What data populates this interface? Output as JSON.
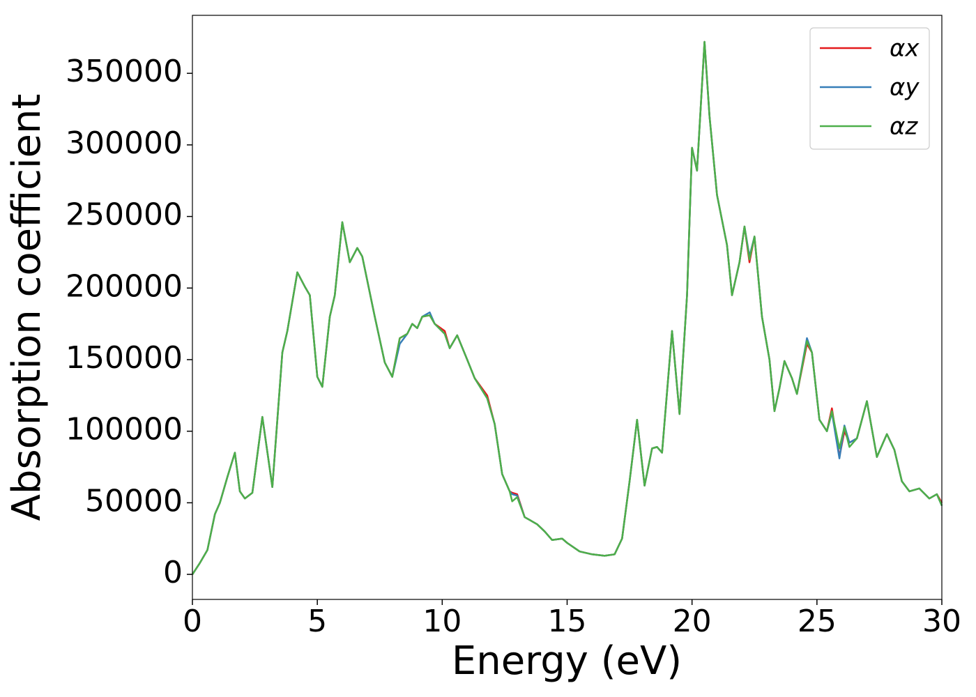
{
  "chart_data": {
    "type": "line",
    "xlabel": "Energy (eV)",
    "ylabel": "Absorption coefficient",
    "x": [
      0,
      0.3,
      0.6,
      0.9,
      1.1,
      1.4,
      1.7,
      1.9,
      2.1,
      2.4,
      2.8,
      3.2,
      3.6,
      3.8,
      4.2,
      4.5,
      4.7,
      5.0,
      5.2,
      5.5,
      5.7,
      6.0,
      6.3,
      6.6,
      6.8,
      7.3,
      7.7,
      8.0,
      8.3,
      8.6,
      8.8,
      9.0,
      9.2,
      9.5,
      9.7,
      10.1,
      10.3,
      10.6,
      11.0,
      11.3,
      11.8,
      12.1,
      12.4,
      12.7,
      12.8,
      13.0,
      13.3,
      13.8,
      14.1,
      14.4,
      14.8,
      15.0,
      15.5,
      16.0,
      16.5,
      16.9,
      17.2,
      17.5,
      17.8,
      18.1,
      18.4,
      18.6,
      18.8,
      19.2,
      19.5,
      19.8,
      20.0,
      20.2,
      20.5,
      20.7,
      21.0,
      21.4,
      21.6,
      21.9,
      22.1,
      22.3,
      22.5,
      22.8,
      23.1,
      23.3,
      23.5,
      23.7,
      24.0,
      24.2,
      24.6,
      24.8,
      25.1,
      25.4,
      25.6,
      25.9,
      26.1,
      26.3,
      26.6,
      27.0,
      27.4,
      27.8,
      28.1,
      28.4,
      28.7,
      29.1,
      29.5,
      29.8,
      30
    ],
    "series": [
      {
        "name": "αx",
        "color": "#e41a1c",
        "values": [
          0,
          8000,
          17000,
          42000,
          50000,
          68000,
          85000,
          58000,
          53000,
          57000,
          110000,
          61000,
          155000,
          170000,
          211000,
          201000,
          195000,
          138000,
          131000,
          180000,
          195000,
          246000,
          218000,
          228000,
          222000,
          180000,
          148000,
          138000,
          165000,
          168000,
          175000,
          172000,
          180000,
          181000,
          175000,
          170000,
          158000,
          167000,
          150000,
          137000,
          125000,
          105000,
          70000,
          58000,
          57000,
          56000,
          40000,
          35000,
          30000,
          24000,
          25000,
          22000,
          16000,
          14000,
          13000,
          14000,
          25000,
          65000,
          108000,
          62000,
          88000,
          89000,
          85000,
          170000,
          112000,
          195000,
          298000,
          282000,
          372000,
          320000,
          265000,
          230000,
          195000,
          218000,
          243000,
          218000,
          236000,
          180000,
          150000,
          114000,
          130000,
          149000,
          137000,
          126000,
          161000,
          155000,
          108000,
          100000,
          116000,
          82000,
          100000,
          92000,
          95000,
          121000,
          82000,
          98000,
          87000,
          65000,
          58000,
          60000,
          53000,
          56000,
          50000
        ]
      },
      {
        "name": "αy",
        "color": "#377eb8",
        "values": [
          0,
          8000,
          17000,
          42000,
          50000,
          68000,
          85000,
          58000,
          53000,
          57000,
          110000,
          61000,
          155000,
          170000,
          211000,
          201000,
          195000,
          138000,
          131000,
          180000,
          195000,
          246000,
          218000,
          228000,
          222000,
          180000,
          148000,
          138000,
          161000,
          168000,
          175000,
          172000,
          180000,
          183000,
          175000,
          168000,
          158000,
          167000,
          150000,
          137000,
          123000,
          105000,
          70000,
          58000,
          56000,
          55000,
          40000,
          35000,
          30000,
          24000,
          25000,
          22000,
          16000,
          14000,
          13000,
          14000,
          25000,
          65000,
          108000,
          62000,
          88000,
          89000,
          85000,
          170000,
          112000,
          195000,
          298000,
          282000,
          372000,
          320000,
          265000,
          230000,
          195000,
          218000,
          243000,
          222000,
          236000,
          180000,
          150000,
          114000,
          130000,
          149000,
          137000,
          126000,
          165000,
          155000,
          108000,
          100000,
          113000,
          81000,
          104000,
          92000,
          95000,
          121000,
          82000,
          98000,
          87000,
          65000,
          58000,
          60000,
          53000,
          56000,
          48000
        ]
      },
      {
        "name": "αz",
        "color": "#4daf4a",
        "values": [
          0,
          8000,
          17000,
          42000,
          50000,
          68000,
          85000,
          58000,
          53000,
          57000,
          110000,
          61000,
          155000,
          170000,
          211000,
          201000,
          195000,
          138000,
          131000,
          180000,
          195000,
          246000,
          218000,
          228000,
          222000,
          180000,
          148000,
          138000,
          165000,
          168000,
          175000,
          172000,
          180000,
          181000,
          175000,
          168000,
          158000,
          167000,
          150000,
          137000,
          123000,
          105000,
          70000,
          58000,
          51000,
          54000,
          40000,
          35000,
          30000,
          24000,
          25000,
          22000,
          16000,
          14000,
          13000,
          14000,
          25000,
          65000,
          108000,
          62000,
          88000,
          89000,
          85000,
          170000,
          112000,
          195000,
          298000,
          282000,
          372000,
          320000,
          265000,
          230000,
          195000,
          218000,
          243000,
          220000,
          236000,
          180000,
          150000,
          114000,
          130000,
          149000,
          137000,
          126000,
          163000,
          155000,
          108000,
          100000,
          114000,
          88000,
          103000,
          89000,
          95000,
          121000,
          82000,
          98000,
          87000,
          65000,
          58000,
          60000,
          53000,
          56000,
          48000
        ]
      }
    ],
    "xlim": [
      0,
      30
    ],
    "xticks": [
      0,
      5,
      10,
      15,
      20,
      25,
      30
    ],
    "ylim": [
      -17500,
      390500
    ],
    "yticks": [
      0,
      50000,
      100000,
      150000,
      200000,
      250000,
      300000,
      350000
    ],
    "legend": "upper right"
  }
}
